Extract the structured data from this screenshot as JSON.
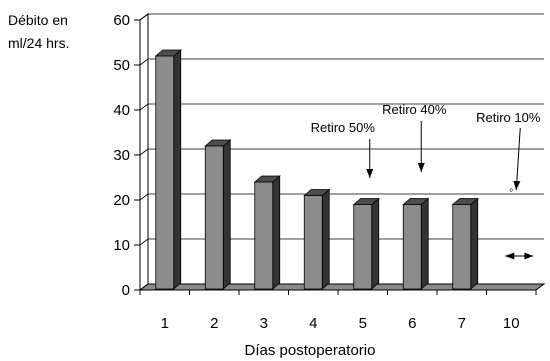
{
  "chart_data": {
    "type": "bar",
    "three_d": true,
    "categories": [
      "1",
      "2",
      "3",
      "4",
      "5",
      "6",
      "7",
      "10"
    ],
    "values": [
      52,
      32,
      24,
      21,
      19,
      19,
      19,
      null
    ],
    "xlabel": "Días postoperatorio",
    "ylabel": [
      "Débito en",
      "ml/24 hrs."
    ],
    "ylim": [
      0,
      60
    ],
    "yticks": [
      0,
      10,
      20,
      30,
      40,
      50,
      60
    ],
    "grid": true,
    "bar_colors": {
      "front": "#8c8c8c",
      "top": "#4d4d4d",
      "side": "#333333"
    },
    "floor_color": "#8a8a8a",
    "annotations": [
      {
        "text": "Retiro 50%",
        "category": "5"
      },
      {
        "text": "Retiro 40%",
        "category": "6"
      },
      {
        "text": "Retiro 10%",
        "category": "10"
      }
    ],
    "markers": [
      {
        "category": "10",
        "text": "°"
      }
    ]
  }
}
